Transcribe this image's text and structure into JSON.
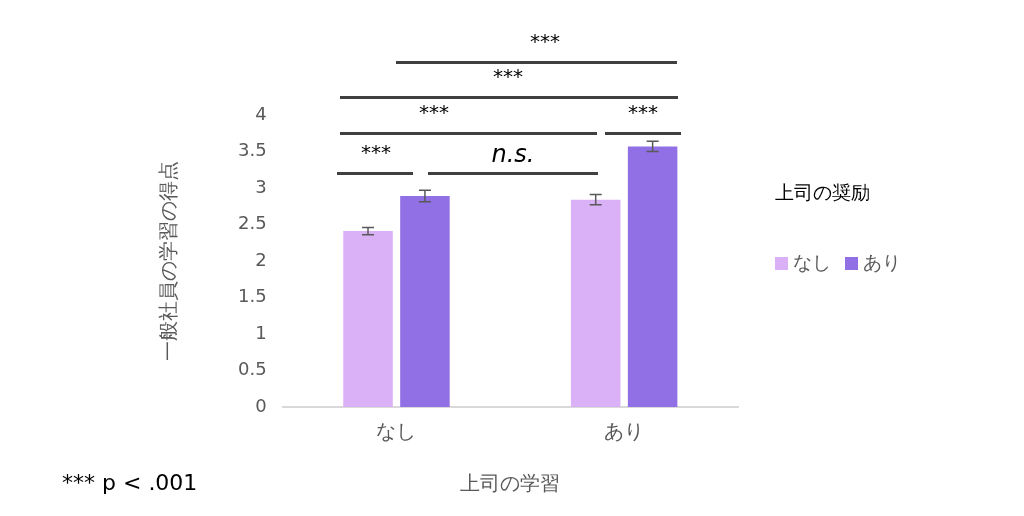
{
  "chart_data": {
    "type": "bar",
    "xlabel": "上司の学習",
    "ylabel": "一般社員の学習の得点",
    "legend_title": "上司の奨励",
    "categories": [
      "なし",
      "あり"
    ],
    "series": [
      {
        "name": "なし",
        "color": "#dab0f7",
        "values": [
          2.41,
          2.84
        ],
        "errors": [
          0.05,
          0.07
        ]
      },
      {
        "name": "あり",
        "color": "#9070e4",
        "values": [
          2.89,
          3.57
        ],
        "errors": [
          0.08,
          0.07
        ]
      }
    ],
    "ylim": [
      0,
      4
    ],
    "yticks": [
      0,
      0.5,
      1,
      1.5,
      2,
      2.5,
      3,
      3.5,
      4
    ],
    "grid": false,
    "legend": "right",
    "annotations": [
      "***",
      "n.s.",
      "***",
      "***",
      "***",
      "***",
      "*** p < .001"
    ]
  }
}
